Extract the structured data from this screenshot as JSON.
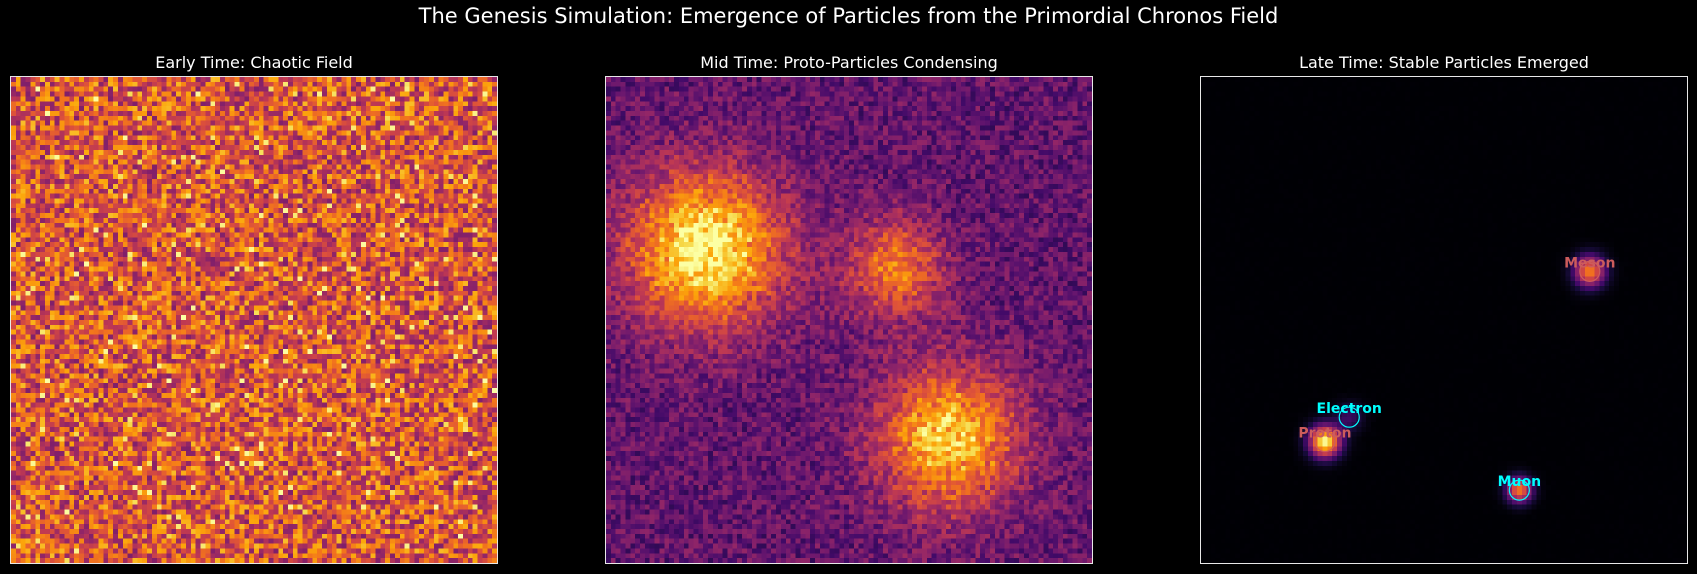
{
  "suptitle": "The Genesis Simulation: Emergence of Particles from the Primordial Chronos Field",
  "colors": {
    "background": "#000000",
    "frame": "#e8e8e8",
    "colormap": "inferno",
    "hadron_label": "#cd5c5c",
    "lepton_label": "#00ffff"
  },
  "chart_data": [
    {
      "type": "heatmap",
      "title": "Early Time: Chaotic Field",
      "grid_size": 100,
      "colormap": "inferno",
      "field": "uniform random noise",
      "noise_level": [
        0.35,
        0.85
      ],
      "xlabel": "",
      "ylabel": ""
    },
    {
      "type": "heatmap",
      "title": "Mid Time: Proto-Particles Condensing",
      "grid_size": 100,
      "colormap": "inferno",
      "noise_level": 0.12,
      "background_level": 0.28,
      "blobs": [
        {
          "x": 20,
          "y": 35,
          "sigma": 11,
          "amplitude": 0.72
        },
        {
          "x": 59,
          "y": 39,
          "sigma": 7,
          "amplitude": 0.42
        },
        {
          "x": 70,
          "y": 74,
          "sigma": 10,
          "amplitude": 0.62
        }
      ],
      "xlabel": "",
      "ylabel": ""
    },
    {
      "type": "heatmap",
      "title": "Late Time: Stable Particles Emerged",
      "grid_size": 100,
      "colormap": "inferno",
      "noise_level": 0.004,
      "background_level": 0.0,
      "blobs": [
        {
          "x": 79.5,
          "y": 39.5,
          "sigma": 2.2,
          "amplitude": 0.72
        },
        {
          "x": 25,
          "y": 74.5,
          "sigma": 2.2,
          "amplitude": 1.0
        },
        {
          "x": 30,
          "y": 69.5,
          "sigma": 2.0,
          "amplitude": 0.18
        },
        {
          "x": 65,
          "y": 84.5,
          "sigma": 1.8,
          "amplitude": 0.7
        }
      ],
      "annotations": [
        {
          "label": "Meson",
          "x": 79.5,
          "y": 39.5,
          "color": "#cd5c5c",
          "marker": "circle"
        },
        {
          "label": "Proton",
          "x": 25,
          "y": 74.5,
          "color": "#cd5c5c",
          "marker": "circle"
        },
        {
          "label": "Electron",
          "x": 30,
          "y": 69.5,
          "color": "#00ffff",
          "marker": "circle"
        },
        {
          "label": "Muon",
          "x": 65,
          "y": 84.5,
          "color": "#00ffff",
          "marker": "circle"
        }
      ],
      "xlabel": "",
      "ylabel": ""
    }
  ]
}
